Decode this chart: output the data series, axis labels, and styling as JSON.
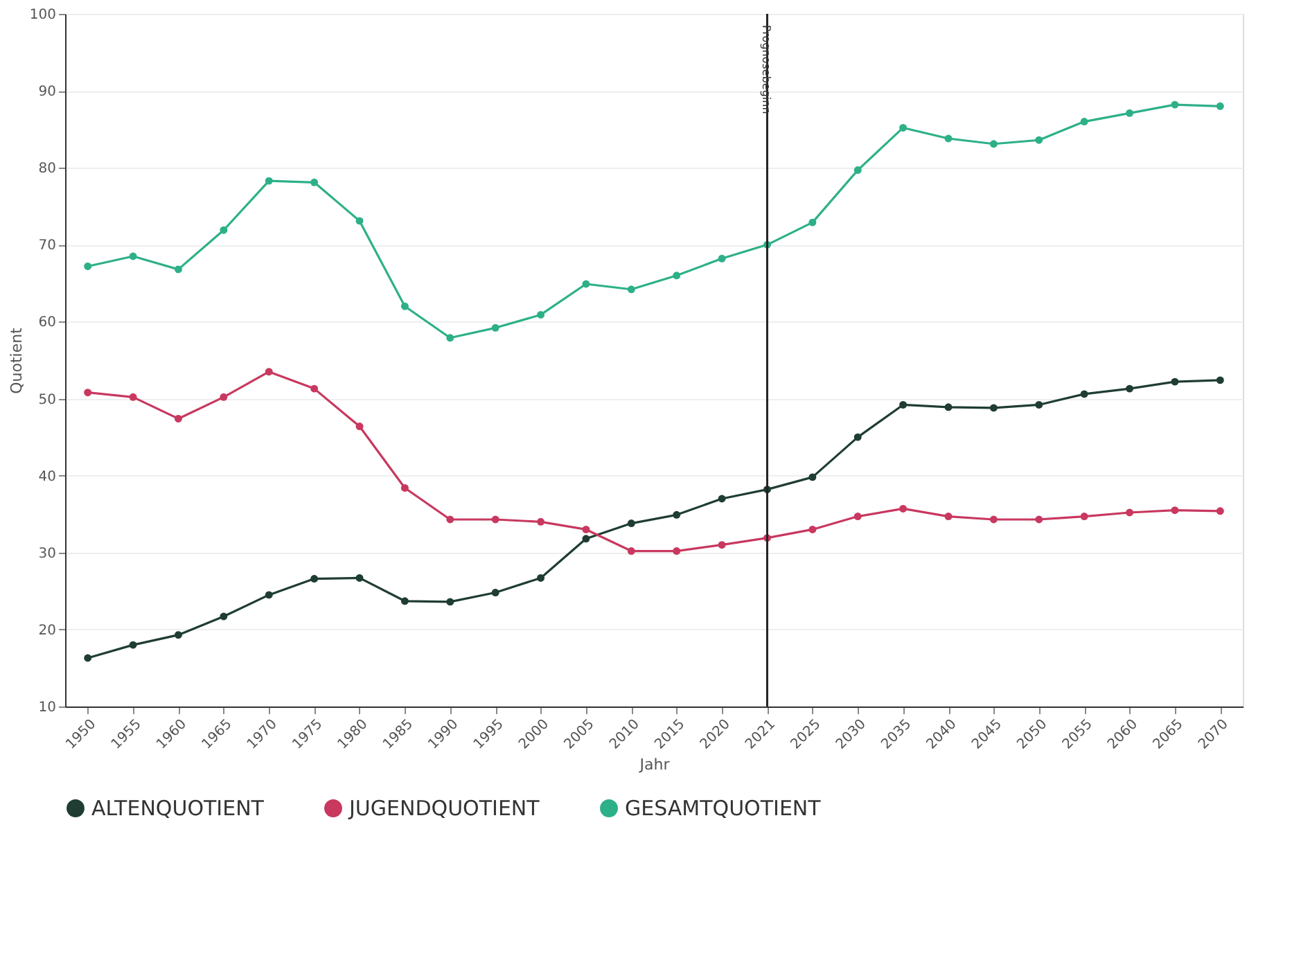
{
  "chart_data": {
    "type": "line",
    "xlabel": "Jahr",
    "ylabel": "Quotient",
    "categories": [
      "1950",
      "1955",
      "1960",
      "1965",
      "1970",
      "1975",
      "1980",
      "1985",
      "1990",
      "1995",
      "2000",
      "2005",
      "2010",
      "2015",
      "2020",
      "2021",
      "2025",
      "2030",
      "2035",
      "2040",
      "2045",
      "2050",
      "2055",
      "2060",
      "2065",
      "2070"
    ],
    "series": [
      {
        "name": "ALTENQUOTIENT",
        "color": "#1f3d33",
        "values": [
          16.3,
          18.0,
          19.3,
          21.7,
          24.5,
          26.6,
          26.7,
          23.7,
          23.6,
          24.8,
          26.7,
          31.8,
          33.8,
          34.9,
          37.0,
          38.2,
          39.8,
          45.0,
          49.2,
          48.9,
          48.8,
          49.2,
          50.6,
          51.3,
          52.2,
          52.4
        ]
      },
      {
        "name": "JUGENDQUOTIENT",
        "color": "#c8385f",
        "values": [
          50.8,
          50.2,
          47.4,
          50.2,
          53.5,
          51.3,
          46.4,
          38.4,
          34.3,
          34.3,
          34.0,
          33.0,
          30.2,
          30.2,
          31.0,
          31.9,
          33.0,
          34.7,
          35.7,
          34.7,
          34.3,
          34.3,
          34.7,
          35.2,
          35.5,
          35.4
        ]
      },
      {
        "name": "GESAMTQUOTIENT",
        "color": "#2db088",
        "values": [
          67.2,
          68.5,
          66.8,
          71.9,
          78.3,
          78.1,
          73.1,
          62.0,
          57.9,
          59.2,
          60.9,
          64.9,
          64.2,
          66.0,
          68.2,
          70.0,
          72.9,
          79.7,
          85.2,
          83.8,
          83.1,
          83.6,
          86.0,
          87.1,
          88.2,
          88.0
        ]
      }
    ],
    "ylim": [
      10,
      100
    ],
    "yticks": [
      10,
      20,
      30,
      40,
      50,
      60,
      70,
      80,
      90,
      100
    ],
    "ref_lines": [
      {
        "axis": "x",
        "value": "2021",
        "label": "Prognosebeginn",
        "color": "#222222"
      }
    ],
    "grid": "y",
    "legend": "bottom",
    "marker": "circle",
    "line_style": "solid"
  }
}
